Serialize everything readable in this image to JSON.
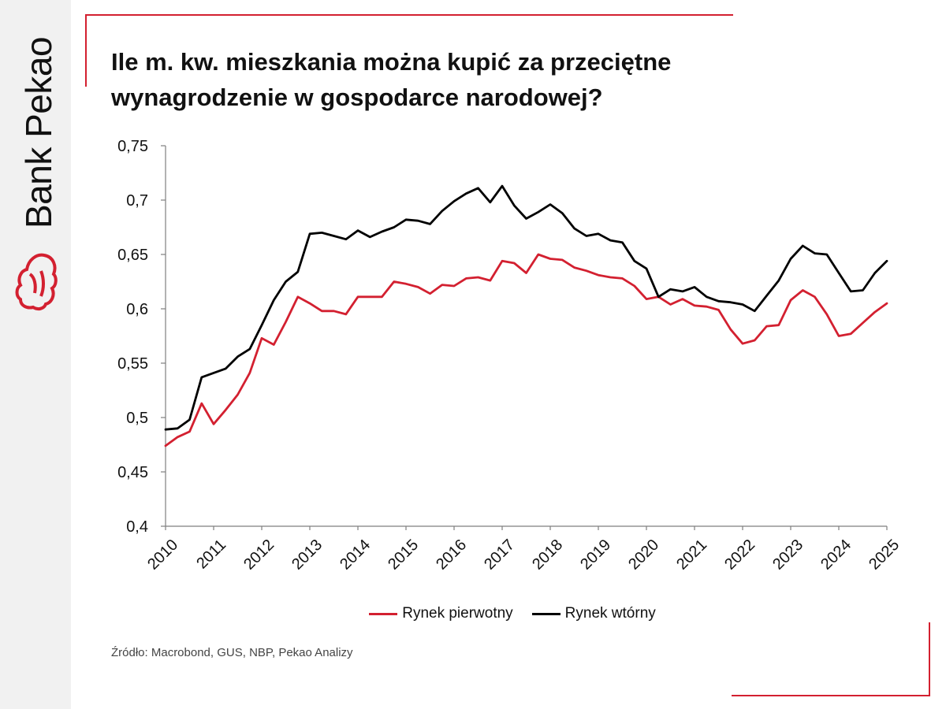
{
  "brand": {
    "name": "Bank Pekao",
    "accent": "#d32030"
  },
  "title": {
    "line1": "Ile m. kw. mieszkania można kupić za przeciętne",
    "line2": "wynagrodzenie w gospodarce narodowej?"
  },
  "source": "Źródło: Macrobond, GUS, NBP, Pekao Analizy",
  "chart_data": {
    "type": "line",
    "title": "Ile m. kw. mieszkania można kupić za przeciętne wynagrodzenie w gospodarce narodowej?",
    "xlabel": "",
    "ylabel": "",
    "ylim": [
      0.4,
      0.75
    ],
    "yticks": [
      "0,4",
      "0,45",
      "0,5",
      "0,55",
      "0,6",
      "0,65",
      "0,7",
      "0,75"
    ],
    "ytick_values": [
      0.4,
      0.45,
      0.5,
      0.55,
      0.6,
      0.65,
      0.7,
      0.75
    ],
    "xticks": [
      "2010",
      "2011",
      "2012",
      "2013",
      "2014",
      "2015",
      "2016",
      "2017",
      "2018",
      "2019",
      "2020",
      "2021",
      "2022",
      "2023",
      "2024",
      "2025"
    ],
    "grid": false,
    "legend_position": "bottom",
    "series": [
      {
        "name": "Rynek pierwotny",
        "color": "#d32030",
        "values": [
          0.474,
          0.482,
          0.487,
          0.513,
          0.494,
          0.507,
          0.521,
          0.541,
          0.573,
          0.567,
          0.588,
          0.611,
          0.605,
          0.598,
          0.598,
          0.595,
          0.611,
          0.611,
          0.611,
          0.625,
          0.623,
          0.62,
          0.614,
          0.622,
          0.621,
          0.628,
          0.629,
          0.626,
          0.644,
          0.642,
          0.633,
          0.65,
          0.646,
          0.645,
          0.638,
          0.635,
          0.631,
          0.629,
          0.628,
          0.621,
          0.609,
          0.611,
          0.604,
          0.609,
          0.603,
          0.602,
          0.599,
          0.581,
          0.568,
          0.571,
          0.584,
          0.585,
          0.608,
          0.617,
          0.611,
          0.595,
          0.575,
          0.577,
          0.587,
          0.597,
          0.605
        ]
      },
      {
        "name": "Rynek wtórny",
        "color": "#000000",
        "values": [
          0.489,
          0.49,
          0.498,
          0.537,
          0.541,
          0.545,
          0.556,
          0.563,
          0.585,
          0.608,
          0.625,
          0.634,
          0.669,
          0.67,
          0.667,
          0.664,
          0.672,
          0.666,
          0.671,
          0.675,
          0.682,
          0.681,
          0.678,
          0.69,
          0.699,
          0.706,
          0.711,
          0.698,
          0.713,
          0.695,
          0.683,
          0.689,
          0.696,
          0.688,
          0.674,
          0.667,
          0.669,
          0.663,
          0.661,
          0.644,
          0.637,
          0.611,
          0.618,
          0.616,
          0.62,
          0.611,
          0.607,
          0.606,
          0.604,
          0.598,
          0.612,
          0.626,
          0.646,
          0.658,
          0.651,
          0.65,
          0.633,
          0.616,
          0.617,
          0.633,
          0.644
        ]
      }
    ]
  }
}
